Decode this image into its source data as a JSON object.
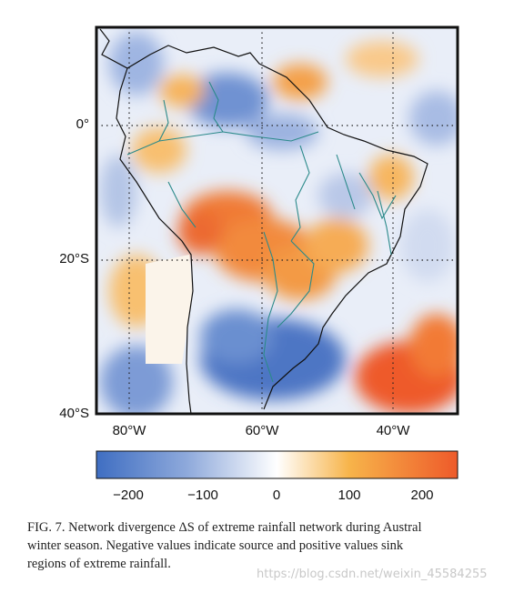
{
  "figure": {
    "latitude_labels": [
      "0°",
      "20°S",
      "40°S"
    ],
    "longitude_labels": [
      "80°W",
      "60°W",
      "40°W"
    ],
    "colorbar": {
      "tick_labels": [
        "−200",
        "−100",
        "0",
        "100",
        "200"
      ],
      "ticks": [
        -200,
        -100,
        0,
        100,
        200
      ],
      "range": [
        -250,
        250
      ],
      "colors": [
        "#3f6ec2",
        "#ffffff",
        "#f5a623",
        "#ee5a2a"
      ]
    },
    "map": {
      "colors": {
        "source": "#5f86cc",
        "sink": "#f07a35",
        "neutral": "#fbf4ea",
        "rivers": "#2b8a8a",
        "coast": "#111111"
      }
    }
  },
  "caption": {
    "lines": [
      "FIG. 7. Network divergence ΔS of extreme rainfall network during Austral",
      "winter season. Negative values indicate source and positive values sink",
      "regions of extreme rainfall."
    ]
  },
  "watermark": "https://blog.csdn.net/weixin_45584255"
}
